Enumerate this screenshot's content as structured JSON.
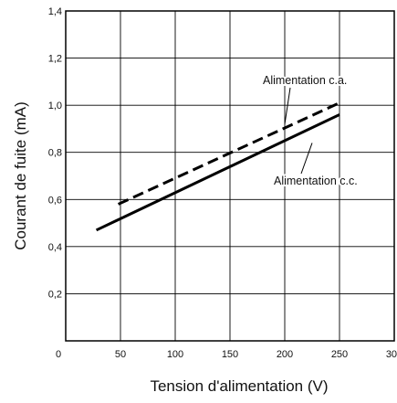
{
  "chart_data": {
    "type": "line",
    "xlabel": "Tension d'alimentation (V)",
    "ylabel": "Courant de fuite (mA)",
    "xlim": [
      0,
      300
    ],
    "ylim": [
      0,
      1.4
    ],
    "x_ticks": [
      "0",
      "50",
      "100",
      "150",
      "200",
      "250",
      "300"
    ],
    "y_ticks": [
      "0,2",
      "0,4",
      "0,6",
      "0,8",
      "1,0",
      "1,2",
      "1,4"
    ],
    "grid": true,
    "series": [
      {
        "name": "Alimentation c.a.",
        "style": "dashed",
        "color": "#000000",
        "x": [
          48,
          250
        ],
        "y": [
          0.58,
          1.01
        ]
      },
      {
        "name": "Alimentation c.c.",
        "style": "solid",
        "color": "#000000",
        "x": [
          28,
          250
        ],
        "y": [
          0.47,
          0.96
        ]
      }
    ],
    "annotations": [
      {
        "text": "Alimentation c.a.",
        "series": 0,
        "point": [
          200,
          0.92
        ]
      },
      {
        "text": "Alimentation c.c.",
        "series": 1,
        "point": [
          225,
          0.84
        ]
      }
    ]
  }
}
